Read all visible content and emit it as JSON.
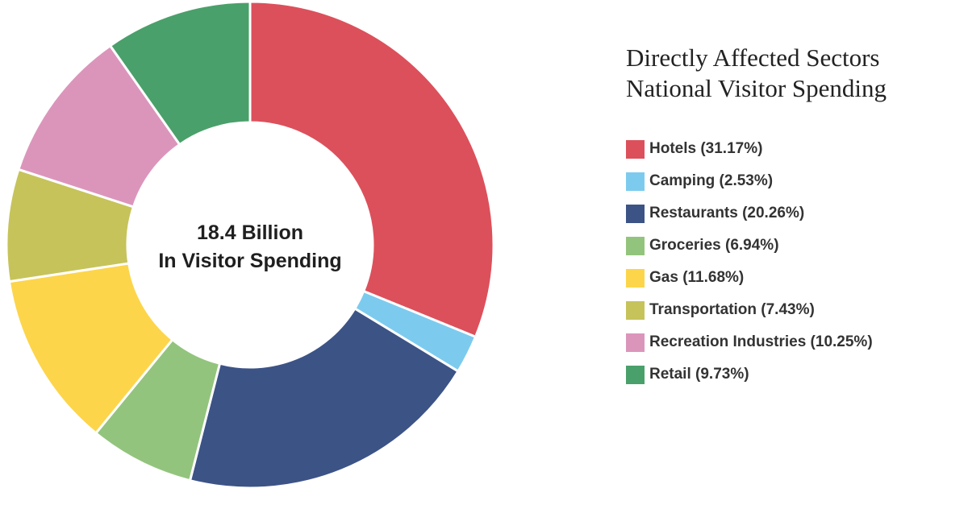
{
  "chart_data": {
    "type": "pie",
    "title": "Directly Affected Sectors National Visitor Spending",
    "title_lines": [
      "Directly Affected Sectors",
      "National Visitor Spending"
    ],
    "center_label_lines": [
      "18.4 Billion",
      "In Visitor Spending"
    ],
    "legend_position": "right",
    "slices": [
      {
        "label": "Hotels",
        "value": 31.17,
        "legend": "Hotels (31.17%)",
        "color": "#dc505b"
      },
      {
        "label": "Camping",
        "value": 2.53,
        "legend": "Camping (2.53%)",
        "color": "#7ccbef"
      },
      {
        "label": "Restaurants",
        "value": 20.26,
        "legend": "Restaurants (20.26%)",
        "color": "#3c5386"
      },
      {
        "label": "Groceries",
        "value": 6.94,
        "legend": "Groceries (6.94%)",
        "color": "#93c47d"
      },
      {
        "label": "Gas",
        "value": 11.68,
        "legend": "Gas (11.68%)",
        "color": "#fdd54a"
      },
      {
        "label": "Transportation",
        "value": 7.43,
        "legend": "Transportation (7.43%)",
        "color": "#c6c35a"
      },
      {
        "label": "Recreation Industries",
        "value": 10.25,
        "legend": "Recreation Industries (10.25%)",
        "color": "#db95bb"
      },
      {
        "label": "Retail",
        "value": 9.73,
        "legend": "Retail (9.73%)",
        "color": "#4aa06a"
      }
    ]
  }
}
